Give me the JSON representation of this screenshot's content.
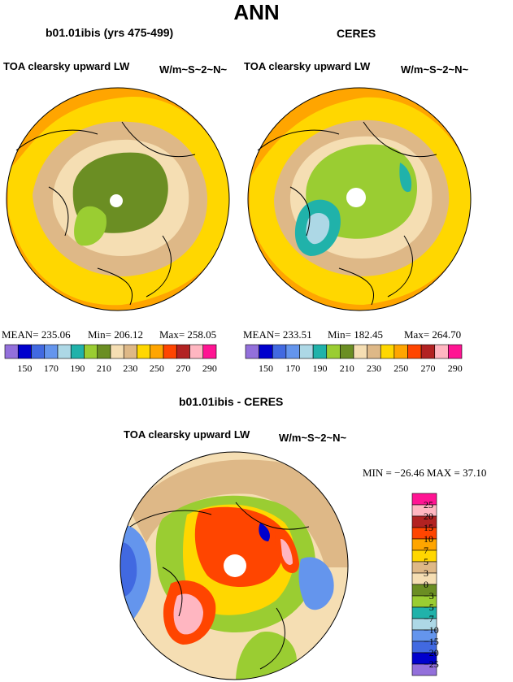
{
  "main_title": "ANN",
  "panels": [
    {
      "title": "b01.01ibis (yrs 475-499)",
      "left_label": "TOA clearsky upward LW",
      "right_label": "W/m~S~2~N~",
      "stats": {
        "mean": "MEAN= 235.06",
        "min": "Min= 206.12",
        "max": "Max= 258.05"
      }
    },
    {
      "title": "CERES",
      "left_label": "TOA clearsky upward LW",
      "right_label": "W/m~S~2~N~",
      "stats": {
        "mean": "MEAN= 233.51",
        "min": "Min= 182.45",
        "max": "Max= 264.70"
      }
    }
  ],
  "diff_panel": {
    "title": "b01.01ibis - CERES",
    "left_label": "TOA clearsky upward LW",
    "right_label": "W/m~S~2~N~",
    "stats_text": "MIN = −26.46 MAX =  37.10"
  },
  "colorbar_abs": {
    "colors": [
      "#9370db",
      "#0000cd",
      "#4169e1",
      "#6495ed",
      "#add8e6",
      "#20b2aa",
      "#9acd32",
      "#6b8e23",
      "#f5deb3",
      "#deb887",
      "#ffd700",
      "#ffa500",
      "#ff4500",
      "#b22222",
      "#ffb6c1",
      "#ff1493"
    ],
    "labels": [
      "150",
      "170",
      "190",
      "210",
      "230",
      "250",
      "270",
      "290"
    ]
  },
  "colorbar_diff": {
    "colors": [
      "#ff1493",
      "#ffb6c1",
      "#b22222",
      "#ff4500",
      "#ffa500",
      "#ffd700",
      "#deb887",
      "#f5deb3",
      "#6b8e23",
      "#9acd32",
      "#20b2aa",
      "#add8e6",
      "#6495ed",
      "#4169e1",
      "#0000cd",
      "#9370db"
    ],
    "labels": [
      "25",
      "20",
      "15",
      "10",
      "7",
      "5",
      "3",
      "0",
      "−3",
      "−5",
      "−7",
      "−10",
      "−15",
      "−20",
      "−25"
    ]
  },
  "chart_data": [
    {
      "type": "heatmap",
      "projection": "north polar stereographic",
      "title": "b01.01ibis (yrs 475-499)",
      "units": "W/m~S~2~N~",
      "levels": [
        150,
        160,
        170,
        180,
        190,
        200,
        210,
        220,
        230,
        240,
        250,
        260,
        270,
        280,
        290
      ],
      "mean": 235.06,
      "min": 206.12,
      "max": 258.05
    },
    {
      "type": "heatmap",
      "projection": "north polar stereographic",
      "title": "CERES",
      "units": "W/m~S~2~N~",
      "levels": [
        150,
        160,
        170,
        180,
        190,
        200,
        210,
        220,
        230,
        240,
        250,
        260,
        270,
        280,
        290
      ],
      "mean": 233.51,
      "min": 182.45,
      "max": 264.7
    },
    {
      "type": "heatmap",
      "projection": "north polar stereographic",
      "title": "b01.01ibis - CERES",
      "units": "W/m~S~2~N~",
      "levels": [
        -25,
        -20,
        -15,
        -10,
        -7,
        -5,
        -3,
        0,
        3,
        5,
        7,
        10,
        15,
        20,
        25
      ],
      "min": -26.46,
      "max": 37.1
    }
  ]
}
